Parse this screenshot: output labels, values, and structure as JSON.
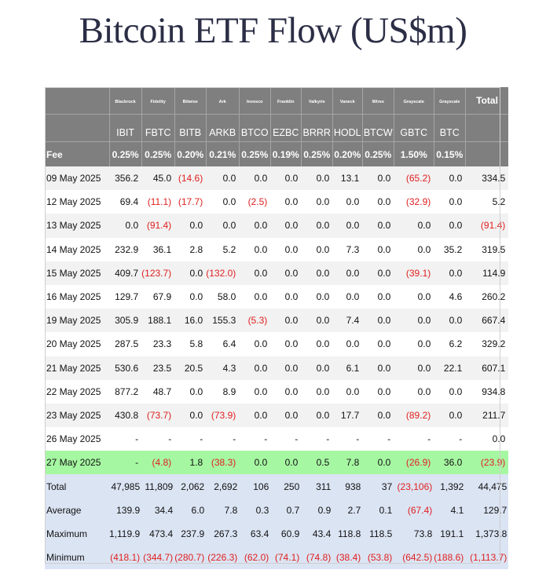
{
  "title": "Bitcoin ETF Flow (US$m)",
  "colors": {
    "header_bg": "#7f7f7f",
    "negative": "#e02020",
    "highlight": "#a6f7a2",
    "stats_bg": "#dbe4f3"
  },
  "header": {
    "issuers": [
      "Blackrock",
      "Fidelity",
      "Bitwise",
      "Ark",
      "Invesco",
      "Franklin",
      "Valkyrie",
      "Vaneck",
      "Wtree",
      "Grayscale",
      "Grayscale"
    ],
    "total_label": "Total",
    "tickers": [
      "IBIT",
      "FBTC",
      "BITB",
      "ARKB",
      "BTCO",
      "EZBC",
      "BRRR",
      "HODL",
      "BTCW",
      "GBTC",
      "BTC"
    ],
    "fee_label": "Fee",
    "fees": [
      "0.25%",
      "0.25%",
      "0.20%",
      "0.21%",
      "0.25%",
      "0.19%",
      "0.25%",
      "0.20%",
      "0.25%",
      "1.50%",
      "0.15%"
    ]
  },
  "rows": [
    {
      "date": "09 May 2025",
      "values": [
        "356.2",
        "45.0",
        "(14.6)",
        "0.0",
        "0.0",
        "0.0",
        "0.0",
        "13.1",
        "0.0",
        "(65.2)",
        "0.0"
      ],
      "total": "334.5"
    },
    {
      "date": "12 May 2025",
      "values": [
        "69.4",
        "(11.1)",
        "(17.7)",
        "0.0",
        "(2.5)",
        "0.0",
        "0.0",
        "0.0",
        "0.0",
        "(32.9)",
        "0.0"
      ],
      "total": "5.2"
    },
    {
      "date": "13 May 2025",
      "values": [
        "0.0",
        "(91.4)",
        "0.0",
        "0.0",
        "0.0",
        "0.0",
        "0.0",
        "0.0",
        "0.0",
        "0.0",
        "0.0"
      ],
      "total": "(91.4)"
    },
    {
      "date": "14 May 2025",
      "values": [
        "232.9",
        "36.1",
        "2.8",
        "5.2",
        "0.0",
        "0.0",
        "0.0",
        "7.3",
        "0.0",
        "0.0",
        "35.2"
      ],
      "total": "319.5"
    },
    {
      "date": "15 May 2025",
      "values": [
        "409.7",
        "(123.7)",
        "0.0",
        "(132.0)",
        "0.0",
        "0.0",
        "0.0",
        "0.0",
        "0.0",
        "(39.1)",
        "0.0"
      ],
      "total": "114.9"
    },
    {
      "date": "16 May 2025",
      "values": [
        "129.7",
        "67.9",
        "0.0",
        "58.0",
        "0.0",
        "0.0",
        "0.0",
        "0.0",
        "0.0",
        "0.0",
        "4.6"
      ],
      "total": "260.2"
    },
    {
      "date": "19 May 2025",
      "values": [
        "305.9",
        "188.1",
        "16.0",
        "155.3",
        "(5.3)",
        "0.0",
        "0.0",
        "7.4",
        "0.0",
        "0.0",
        "0.0"
      ],
      "total": "667.4"
    },
    {
      "date": "20 May 2025",
      "values": [
        "287.5",
        "23.3",
        "5.8",
        "6.4",
        "0.0",
        "0.0",
        "0.0",
        "0.0",
        "0.0",
        "0.0",
        "6.2"
      ],
      "total": "329.2"
    },
    {
      "date": "21 May 2025",
      "values": [
        "530.6",
        "23.5",
        "20.5",
        "4.3",
        "0.0",
        "0.0",
        "0.0",
        "6.1",
        "0.0",
        "0.0",
        "22.1"
      ],
      "total": "607.1"
    },
    {
      "date": "22 May 2025",
      "values": [
        "877.2",
        "48.7",
        "0.0",
        "8.9",
        "0.0",
        "0.0",
        "0.0",
        "0.0",
        "0.0",
        "0.0",
        "0.0"
      ],
      "total": "934.8"
    },
    {
      "date": "23 May 2025",
      "values": [
        "430.8",
        "(73.7)",
        "0.0",
        "(73.9)",
        "0.0",
        "0.0",
        "0.0",
        "17.7",
        "0.0",
        "(89.2)",
        "0.0"
      ],
      "total": "211.7"
    },
    {
      "date": "26 May 2025",
      "values": [
        "-",
        "-",
        "-",
        "-",
        "-",
        "-",
        "-",
        "-",
        "-",
        "-",
        "-"
      ],
      "total": "0.0"
    },
    {
      "date": "27 May 2025",
      "values": [
        "-",
        "(4.8)",
        "1.8",
        "(38.3)",
        "0.0",
        "0.0",
        "0.5",
        "7.8",
        "0.0",
        "(26.9)",
        "36.0"
      ],
      "total": "(23.9)",
      "highlight": true
    }
  ],
  "stats": [
    {
      "label": "Total",
      "values": [
        "47,985",
        "11,809",
        "2,062",
        "2,692",
        "106",
        "250",
        "311",
        "938",
        "37",
        "(23,106)",
        "1,392"
      ],
      "total": "44,475"
    },
    {
      "label": "Average",
      "values": [
        "139.9",
        "34.4",
        "6.0",
        "7.8",
        "0.3",
        "0.7",
        "0.9",
        "2.7",
        "0.1",
        "(67.4)",
        "4.1"
      ],
      "total": "129.7"
    },
    {
      "label": "Maximum",
      "values": [
        "1,119.9",
        "473.4",
        "237.9",
        "267.3",
        "63.4",
        "60.9",
        "43.4",
        "118.8",
        "118.5",
        "73.8",
        "191.1"
      ],
      "total": "1,373.8"
    },
    {
      "label": "Minimum",
      "values": [
        "(418.1)",
        "(344.7)",
        "(280.7)",
        "(226.3)",
        "(62.0)",
        "(74.1)",
        "(74.8)",
        "(38.4)",
        "(53.8)",
        "(642.5)",
        "(188.6)"
      ],
      "total": "(1,113.7)"
    }
  ]
}
